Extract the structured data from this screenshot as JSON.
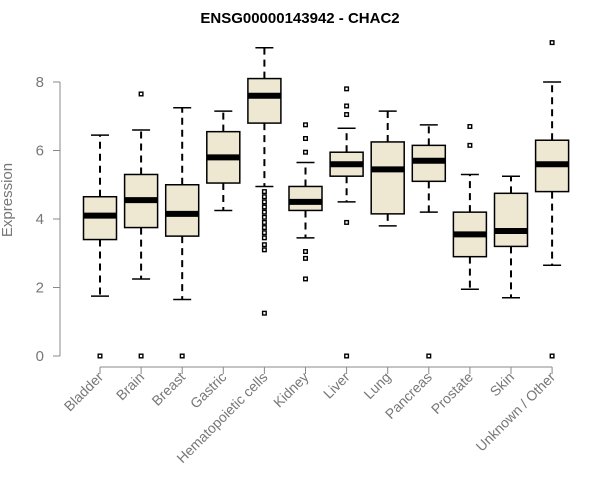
{
  "chart_data": {
    "type": "boxplot",
    "title": "ENSG00000143942 - CHAC2",
    "xlabel": "",
    "ylabel": "Expression",
    "ylim": [
      0,
      9.2
    ],
    "yticks": [
      0,
      2,
      4,
      6,
      8
    ],
    "colors": {
      "box_fill": "#eee8d2",
      "stroke": "#000000",
      "axis": "#888888",
      "label": "#777777"
    },
    "categories": [
      "Bladder",
      "Brain",
      "Breast",
      "Gastric",
      "Hematopoietic cells",
      "Kidney",
      "Liver",
      "Lung",
      "Pancreas",
      "Prostate",
      "Skin",
      "Unknown / Other"
    ],
    "boxes": [
      {
        "name": "Bladder",
        "whisker_low": 1.75,
        "q1": 3.4,
        "median": 4.1,
        "q3": 4.65,
        "whisker_high": 6.45,
        "outliers": [
          0
        ]
      },
      {
        "name": "Brain",
        "whisker_low": 2.25,
        "q1": 3.75,
        "median": 4.55,
        "q3": 5.3,
        "whisker_high": 6.6,
        "outliers": [
          0,
          7.65
        ]
      },
      {
        "name": "Breast",
        "whisker_low": 1.65,
        "q1": 3.5,
        "median": 4.15,
        "q3": 5.0,
        "whisker_high": 7.25,
        "outliers": [
          0
        ]
      },
      {
        "name": "Gastric",
        "whisker_low": 4.25,
        "q1": 5.05,
        "median": 5.8,
        "q3": 6.55,
        "whisker_high": 7.15,
        "outliers": []
      },
      {
        "name": "Hematopoietic cells",
        "whisker_low": 4.95,
        "q1": 6.8,
        "median": 7.6,
        "q3": 8.1,
        "whisker_high": 9.0,
        "outliers": [
          1.25,
          3.1,
          3.25,
          3.45,
          3.6,
          3.75,
          3.9,
          4.05,
          4.2,
          4.35,
          4.5,
          4.65,
          4.8
        ]
      },
      {
        "name": "Kidney",
        "whisker_low": 3.45,
        "q1": 4.25,
        "median": 4.5,
        "q3": 4.95,
        "whisker_high": 5.65,
        "outliers": [
          2.25,
          2.85,
          3.05,
          5.95,
          6.35,
          6.75
        ]
      },
      {
        "name": "Liver",
        "whisker_low": 4.5,
        "q1": 5.25,
        "median": 5.6,
        "q3": 5.95,
        "whisker_high": 6.65,
        "outliers": [
          0,
          3.9,
          7.05,
          7.3,
          7.8
        ]
      },
      {
        "name": "Lung",
        "whisker_low": 3.8,
        "q1": 4.15,
        "median": 5.45,
        "q3": 6.25,
        "whisker_high": 7.15,
        "outliers": []
      },
      {
        "name": "Pancreas",
        "whisker_low": 4.2,
        "q1": 5.1,
        "median": 5.7,
        "q3": 6.15,
        "whisker_high": 6.75,
        "outliers": [
          0
        ]
      },
      {
        "name": "Prostate",
        "whisker_low": 1.95,
        "q1": 2.9,
        "median": 3.55,
        "q3": 4.2,
        "whisker_high": 5.3,
        "outliers": [
          6.15,
          6.7
        ]
      },
      {
        "name": "Skin",
        "whisker_low": 1.7,
        "q1": 3.2,
        "median": 3.65,
        "q3": 4.75,
        "whisker_high": 5.25,
        "outliers": []
      },
      {
        "name": "Unknown / Other",
        "whisker_low": 2.65,
        "q1": 4.8,
        "median": 5.6,
        "q3": 6.3,
        "whisker_high": 8.0,
        "outliers": [
          0,
          9.15
        ]
      }
    ]
  }
}
